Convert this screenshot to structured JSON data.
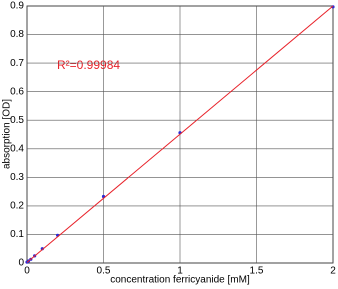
{
  "chart_data": {
    "type": "scatter",
    "xlabel": "concentration ferricyanide [mM]",
    "ylabel": "absorption [OD]",
    "annotation": "R²=0.99984",
    "xlim": [
      0,
      2
    ],
    "xticks": [
      0,
      0.5,
      1,
      1.5,
      2
    ],
    "ylim": [
      0,
      0.9
    ],
    "yticks": [
      0,
      0.1,
      0.2,
      0.3,
      0.4,
      0.5,
      0.6,
      0.7,
      0.8,
      0.9
    ],
    "grid": true,
    "series": [
      {
        "type": "scatter",
        "color": "#2b2bd6",
        "x": [
          0,
          0.01,
          0.025,
          0.05,
          0.1,
          0.2,
          0.5,
          1,
          2
        ],
        "values": [
          0.003,
          0.007,
          0.013,
          0.025,
          0.05,
          0.097,
          0.233,
          0.456,
          0.897
        ]
      },
      {
        "type": "line",
        "color": "#e8222a",
        "x": [
          0,
          2
        ],
        "values": [
          0.002,
          0.9
        ]
      }
    ]
  }
}
